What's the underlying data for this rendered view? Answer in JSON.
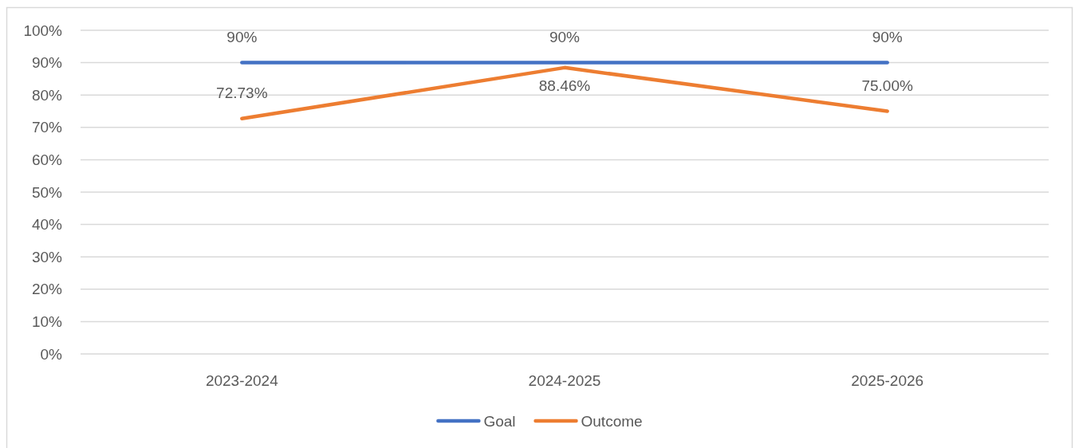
{
  "chart_data": {
    "type": "line",
    "categories": [
      "2023-2024",
      "2024-2025",
      "2025-2026"
    ],
    "series": [
      {
        "name": "Goal",
        "color": "#4472c4",
        "values": [
          90,
          90,
          90
        ],
        "value_labels": [
          "90%",
          "90%",
          "90%"
        ]
      },
      {
        "name": "Outcome",
        "color": "#ed7d31",
        "values": [
          72.73,
          88.46,
          75.0
        ],
        "value_labels": [
          "72.73%",
          "88.46%",
          "75.00%"
        ]
      }
    ],
    "ylim": [
      0,
      100
    ],
    "yticks": [
      {
        "value": 0,
        "label": "0%"
      },
      {
        "value": 10,
        "label": "10%"
      },
      {
        "value": 20,
        "label": "20%"
      },
      {
        "value": 30,
        "label": "30%"
      },
      {
        "value": 40,
        "label": "40%"
      },
      {
        "value": 50,
        "label": "50%"
      },
      {
        "value": 60,
        "label": "60%"
      },
      {
        "value": 70,
        "label": "70%"
      },
      {
        "value": 80,
        "label": "80%"
      },
      {
        "value": 90,
        "label": "90%"
      },
      {
        "value": 100,
        "label": "100%"
      }
    ],
    "grid": "y",
    "legend": "bottom",
    "line_style": "solid"
  }
}
